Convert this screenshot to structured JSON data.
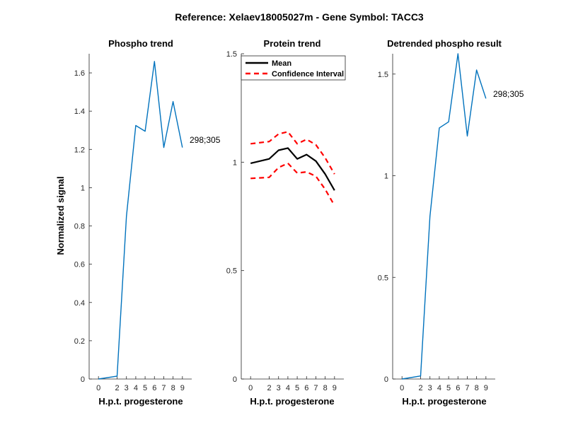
{
  "figure_title": "Reference:  Xelaev18005027m - Gene Symbol:  TACC3",
  "colors": {
    "series": "#0072BD",
    "mean": "#000000",
    "ci": "#FF0000",
    "axis": "#262626"
  },
  "chart_data": [
    {
      "type": "line",
      "title": "Phospho trend",
      "xlabel": "H.p.t. progesterone",
      "ylabel": "Normalized signal",
      "xticks": [
        0,
        2,
        3,
        4,
        5,
        6,
        7,
        8,
        9
      ],
      "yticks": [
        0,
        0.2,
        0.4,
        0.6,
        0.8,
        1,
        1.2,
        1.4,
        1.6
      ],
      "ytick_labels": [
        "0",
        "0.2",
        "0.4",
        "0.6",
        "0.8",
        "1",
        "1.2",
        "1.4",
        "1.6"
      ],
      "ylim": [
        0,
        1.7
      ],
      "series": [
        {
          "x": [
            0,
            2,
            3,
            4,
            5,
            6,
            7,
            8,
            9
          ],
          "y": [
            0,
            0.015,
            0.85,
            1.325,
            1.295,
            1.66,
            1.21,
            1.45,
            1.21
          ],
          "label": "298;305"
        }
      ]
    },
    {
      "type": "line",
      "title": "Protein trend",
      "xlabel": "H.p.t. progesterone",
      "xticks": [
        0,
        2,
        3,
        4,
        5,
        6,
        7,
        8,
        9
      ],
      "yticks": [
        0,
        0.5,
        1,
        1.5
      ],
      "ytick_labels": [
        "0",
        "0.5",
        "1",
        "1.5"
      ],
      "ylim": [
        0,
        1.5
      ],
      "legend": "top-right",
      "series": [
        {
          "name": "Mean",
          "x": [
            0,
            2,
            3,
            4,
            5,
            6,
            7,
            8,
            9
          ],
          "y": [
            0.995,
            1.015,
            1.055,
            1.065,
            1.015,
            1.035,
            1.005,
            0.945,
            0.87
          ]
        },
        {
          "name": "Confidence Interval",
          "x": [
            0,
            2,
            3,
            4,
            5,
            6,
            7,
            8,
            9
          ],
          "y": [
            1.085,
            1.095,
            1.13,
            1.14,
            1.085,
            1.105,
            1.08,
            1.02,
            0.945
          ]
        },
        {
          "x": [
            0,
            2,
            3,
            4,
            5,
            6,
            7,
            8,
            9
          ],
          "y": [
            0.925,
            0.93,
            0.975,
            0.995,
            0.95,
            0.955,
            0.935,
            0.875,
            0.8
          ]
        }
      ]
    },
    {
      "type": "line",
      "title": "Detrended phospho result",
      "xlabel": "H.p.t. progesterone",
      "xticks": [
        0,
        2,
        3,
        4,
        5,
        6,
        7,
        8,
        9
      ],
      "yticks": [
        0,
        0.5,
        1,
        1.5
      ],
      "ytick_labels": [
        "0",
        "0.5",
        "1",
        "1.5"
      ],
      "ylim": [
        0,
        1.6
      ],
      "series": [
        {
          "x": [
            0,
            2,
            3,
            4,
            5,
            6,
            7,
            8,
            9
          ],
          "y": [
            0,
            0.015,
            0.8,
            1.235,
            1.265,
            1.6,
            1.195,
            1.52,
            1.38
          ],
          "label": "298;305"
        }
      ]
    }
  ]
}
